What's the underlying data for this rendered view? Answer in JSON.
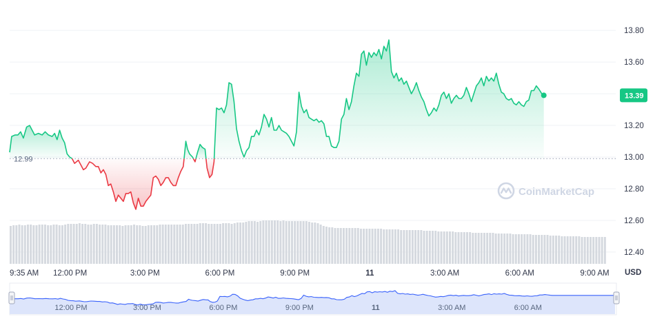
{
  "chart_data": {
    "type": "line",
    "y_ticks": [
      "13.80",
      "13.60",
      "13.40",
      "13.20",
      "13.00",
      "12.80",
      "12.60",
      "12.40"
    ],
    "y_tick_values": [
      13.8,
      13.6,
      13.4,
      13.2,
      13.0,
      12.8,
      12.6,
      12.4
    ],
    "ylim": [
      12.33,
      13.94
    ],
    "x_ticks": [
      {
        "label": "9:35 AM",
        "bold": false
      },
      {
        "label": "12:00 PM",
        "bold": false
      },
      {
        "label": "3:00 PM",
        "bold": false
      },
      {
        "label": "6:00 PM",
        "bold": false
      },
      {
        "label": "9:00 PM",
        "bold": false
      },
      {
        "label": "11",
        "bold": true
      },
      {
        "label": "3:00 AM",
        "bold": false
      },
      {
        "label": "6:00 AM",
        "bold": false
      },
      {
        "label": "9:00 AM",
        "bold": false
      }
    ],
    "x_tick_hours": [
      0,
      2.4167,
      5.4167,
      8.4167,
      11.4167,
      14.4167,
      17.4167,
      20.4167,
      23.4167
    ],
    "x_range_hours": [
      0,
      23.9
    ],
    "y_unit": "USD",
    "reference_value": 12.99,
    "reference_label": "12.99",
    "current_value": 13.39,
    "current_label": "13.39",
    "colors": {
      "above": "#16c784",
      "below": "#ea3943",
      "volume": "#d5d9df",
      "navigator_line": "#3861fb",
      "navigator_fill": "#dde5fb",
      "grid": "#eff2f5"
    },
    "series": [
      {
        "values": [
          [
            0.0,
            13.03
          ],
          [
            0.08,
            13.13
          ],
          [
            0.22,
            13.14
          ],
          [
            0.33,
            13.14
          ],
          [
            0.44,
            13.16
          ],
          [
            0.55,
            13.12
          ],
          [
            0.68,
            13.19
          ],
          [
            0.8,
            13.2
          ],
          [
            0.9,
            13.17
          ],
          [
            1.0,
            13.14
          ],
          [
            1.15,
            13.15
          ],
          [
            1.3,
            13.14
          ],
          [
            1.42,
            13.16
          ],
          [
            1.55,
            13.14
          ],
          [
            1.7,
            13.13
          ],
          [
            1.8,
            13.15
          ],
          [
            1.9,
            13.11
          ],
          [
            2.0,
            13.17
          ],
          [
            2.1,
            13.12
          ],
          [
            2.2,
            13.09
          ],
          [
            2.3,
            13.02
          ],
          [
            2.4,
            13.0
          ],
          [
            2.5,
            12.99
          ],
          [
            2.6,
            12.96
          ],
          [
            2.75,
            12.98
          ],
          [
            2.85,
            12.95
          ],
          [
            2.95,
            12.92
          ],
          [
            3.05,
            12.93
          ],
          [
            3.2,
            12.97
          ],
          [
            3.32,
            12.96
          ],
          [
            3.45,
            12.94
          ],
          [
            3.55,
            12.94
          ],
          [
            3.65,
            12.9
          ],
          [
            3.75,
            12.92
          ],
          [
            3.85,
            12.89
          ],
          [
            3.95,
            12.82
          ],
          [
            4.05,
            12.83
          ],
          [
            4.15,
            12.78
          ],
          [
            4.25,
            12.72
          ],
          [
            4.35,
            12.76
          ],
          [
            4.45,
            12.74
          ],
          [
            4.55,
            12.72
          ],
          [
            4.65,
            12.77
          ],
          [
            4.75,
            12.77
          ],
          [
            4.85,
            12.78
          ],
          [
            4.95,
            12.71
          ],
          [
            5.05,
            12.67
          ],
          [
            5.15,
            12.74
          ],
          [
            5.25,
            12.69
          ],
          [
            5.35,
            12.69
          ],
          [
            5.45,
            12.72
          ],
          [
            5.55,
            12.74
          ],
          [
            5.65,
            12.76
          ],
          [
            5.75,
            12.87
          ],
          [
            5.85,
            12.88
          ],
          [
            5.95,
            12.86
          ],
          [
            6.05,
            12.82
          ],
          [
            6.15,
            12.84
          ],
          [
            6.25,
            12.87
          ],
          [
            6.35,
            12.87
          ],
          [
            6.45,
            12.84
          ],
          [
            6.55,
            12.82
          ],
          [
            6.65,
            12.82
          ],
          [
            6.75,
            12.87
          ],
          [
            6.85,
            12.91
          ],
          [
            6.95,
            12.94
          ],
          [
            7.05,
            13.1
          ],
          [
            7.12,
            13.05
          ],
          [
            7.2,
            13.02
          ],
          [
            7.32,
            13.0
          ],
          [
            7.42,
            12.97
          ],
          [
            7.52,
            13.03
          ],
          [
            7.62,
            13.08
          ],
          [
            7.72,
            13.06
          ],
          [
            7.82,
            13.05
          ],
          [
            7.9,
            12.93
          ],
          [
            8.0,
            12.87
          ],
          [
            8.1,
            12.89
          ],
          [
            8.18,
            12.97
          ],
          [
            8.28,
            13.31
          ],
          [
            8.38,
            13.3
          ],
          [
            8.48,
            13.31
          ],
          [
            8.58,
            13.28
          ],
          [
            8.68,
            13.33
          ],
          [
            8.78,
            13.47
          ],
          [
            8.88,
            13.46
          ],
          [
            8.98,
            13.35
          ],
          [
            9.08,
            13.18
          ],
          [
            9.18,
            13.1
          ],
          [
            9.28,
            13.04
          ],
          [
            9.38,
            13.0
          ],
          [
            9.48,
            13.04
          ],
          [
            9.58,
            13.06
          ],
          [
            9.68,
            13.13
          ],
          [
            9.78,
            13.13
          ],
          [
            9.88,
            13.17
          ],
          [
            9.98,
            13.14
          ],
          [
            10.08,
            13.19
          ],
          [
            10.18,
            13.27
          ],
          [
            10.28,
            13.24
          ],
          [
            10.38,
            13.19
          ],
          [
            10.48,
            13.25
          ],
          [
            10.58,
            13.17
          ],
          [
            10.68,
            13.17
          ],
          [
            10.78,
            13.2
          ],
          [
            10.88,
            13.17
          ],
          [
            10.98,
            13.16
          ],
          [
            11.08,
            13.15
          ],
          [
            11.18,
            13.13
          ],
          [
            11.28,
            13.1
          ],
          [
            11.38,
            13.07
          ],
          [
            11.48,
            13.16
          ],
          [
            11.58,
            13.41
          ],
          [
            11.68,
            13.32
          ],
          [
            11.78,
            13.28
          ],
          [
            11.88,
            13.3
          ],
          [
            11.98,
            13.25
          ],
          [
            12.08,
            13.24
          ],
          [
            12.18,
            13.23
          ],
          [
            12.28,
            13.24
          ],
          [
            12.38,
            13.22
          ],
          [
            12.48,
            13.23
          ],
          [
            12.58,
            13.21
          ],
          [
            12.68,
            13.13
          ],
          [
            12.78,
            13.13
          ],
          [
            12.88,
            13.07
          ],
          [
            12.98,
            13.06
          ],
          [
            13.08,
            13.06
          ],
          [
            13.18,
            13.1
          ],
          [
            13.28,
            13.24
          ],
          [
            13.38,
            13.27
          ],
          [
            13.48,
            13.37
          ],
          [
            13.58,
            13.3
          ],
          [
            13.68,
            13.35
          ],
          [
            13.78,
            13.45
          ],
          [
            13.88,
            13.53
          ],
          [
            13.98,
            13.51
          ],
          [
            14.08,
            13.65
          ],
          [
            14.18,
            13.67
          ],
          [
            14.28,
            13.58
          ],
          [
            14.38,
            13.66
          ],
          [
            14.48,
            13.63
          ],
          [
            14.58,
            13.66
          ],
          [
            14.68,
            13.64
          ],
          [
            14.78,
            13.68
          ],
          [
            14.88,
            13.62
          ],
          [
            14.98,
            13.7
          ],
          [
            15.08,
            13.67
          ],
          [
            15.18,
            13.74
          ],
          [
            15.28,
            13.54
          ],
          [
            15.38,
            13.5
          ],
          [
            15.48,
            13.53
          ],
          [
            15.58,
            13.48
          ],
          [
            15.68,
            13.5
          ],
          [
            15.78,
            13.46
          ],
          [
            15.88,
            13.48
          ],
          [
            15.98,
            13.44
          ],
          [
            16.08,
            13.4
          ],
          [
            16.18,
            13.43
          ],
          [
            16.28,
            13.47
          ],
          [
            16.38,
            13.42
          ],
          [
            16.48,
            13.38
          ],
          [
            16.58,
            13.35
          ],
          [
            16.68,
            13.3
          ],
          [
            16.78,
            13.26
          ],
          [
            16.88,
            13.28
          ],
          [
            16.98,
            13.31
          ],
          [
            17.08,
            13.29
          ],
          [
            17.18,
            13.33
          ],
          [
            17.28,
            13.39
          ],
          [
            17.38,
            13.41
          ],
          [
            17.48,
            13.37
          ],
          [
            17.58,
            13.4
          ],
          [
            17.68,
            13.34
          ],
          [
            17.78,
            13.37
          ],
          [
            17.88,
            13.39
          ],
          [
            17.98,
            13.37
          ],
          [
            18.08,
            13.37
          ],
          [
            18.18,
            13.39
          ],
          [
            18.28,
            13.44
          ],
          [
            18.38,
            13.4
          ],
          [
            18.48,
            13.35
          ],
          [
            18.58,
            13.4
          ],
          [
            18.68,
            13.45
          ],
          [
            18.78,
            13.47
          ],
          [
            18.88,
            13.5
          ],
          [
            18.98,
            13.45
          ],
          [
            19.08,
            13.51
          ],
          [
            19.18,
            13.48
          ],
          [
            19.28,
            13.5
          ],
          [
            19.38,
            13.48
          ],
          [
            19.48,
            13.53
          ],
          [
            19.58,
            13.46
          ],
          [
            19.68,
            13.41
          ],
          [
            19.78,
            13.4
          ],
          [
            19.88,
            13.37
          ],
          [
            19.98,
            13.36
          ],
          [
            20.08,
            13.37
          ],
          [
            20.18,
            13.34
          ],
          [
            20.28,
            13.33
          ],
          [
            20.38,
            13.35
          ],
          [
            20.48,
            13.33
          ],
          [
            20.58,
            13.32
          ],
          [
            20.68,
            13.35
          ],
          [
            20.78,
            13.36
          ],
          [
            20.88,
            13.42
          ],
          [
            20.98,
            13.42
          ],
          [
            21.08,
            13.45
          ],
          [
            21.18,
            13.43
          ],
          [
            21.3,
            13.4
          ],
          [
            21.38,
            13.39
          ]
        ]
      }
    ],
    "volume": [
      0.55,
      0.56,
      0.56,
      0.57,
      0.56,
      0.56,
      0.57,
      0.57,
      0.56,
      0.56,
      0.57,
      0.57,
      0.57,
      0.56,
      0.56,
      0.57,
      0.57,
      0.56,
      0.56,
      0.57,
      0.58,
      0.58,
      0.58,
      0.58,
      0.59,
      0.58,
      0.58,
      0.57,
      0.57,
      0.58,
      0.58,
      0.57,
      0.57,
      0.57,
      0.56,
      0.56,
      0.56,
      0.56,
      0.56,
      0.55,
      0.56,
      0.56,
      0.56,
      0.57,
      0.56,
      0.56,
      0.55,
      0.55,
      0.56,
      0.56,
      0.56,
      0.56,
      0.57,
      0.57,
      0.57,
      0.57,
      0.57,
      0.57,
      0.57,
      0.57,
      0.57,
      0.58,
      0.58,
      0.58,
      0.58,
      0.58,
      0.59,
      0.59,
      0.59,
      0.58,
      0.58,
      0.58,
      0.58,
      0.58,
      0.59,
      0.59,
      0.59,
      0.58,
      0.59,
      0.6,
      0.6,
      0.6,
      0.61,
      0.62,
      0.62,
      0.62,
      0.61,
      0.62,
      0.63,
      0.63,
      0.63,
      0.63,
      0.63,
      0.63,
      0.62,
      0.63,
      0.62,
      0.62,
      0.62,
      0.62,
      0.62,
      0.62,
      0.62,
      0.62,
      0.61,
      0.6,
      0.6,
      0.59,
      0.57,
      0.55,
      0.54,
      0.53,
      0.53,
      0.52,
      0.52,
      0.52,
      0.52,
      0.52,
      0.52,
      0.52,
      0.52,
      0.52,
      0.51,
      0.51,
      0.51,
      0.51,
      0.51,
      0.51,
      0.51,
      0.51,
      0.5,
      0.5,
      0.5,
      0.5,
      0.5,
      0.5,
      0.49,
      0.49,
      0.49,
      0.49,
      0.49,
      0.49,
      0.49,
      0.49,
      0.48,
      0.48,
      0.48,
      0.48,
      0.48,
      0.47,
      0.47,
      0.47,
      0.47,
      0.47,
      0.47,
      0.46,
      0.46,
      0.46,
      0.46,
      0.46,
      0.46,
      0.45,
      0.45,
      0.45,
      0.45,
      0.45,
      0.45,
      0.45,
      0.45,
      0.44,
      0.44,
      0.44,
      0.44,
      0.44,
      0.44,
      0.43,
      0.43,
      0.43,
      0.43,
      0.43,
      0.43,
      0.43,
      0.42,
      0.42,
      0.42,
      0.42,
      0.42,
      0.42,
      0.41,
      0.41,
      0.41,
      0.41,
      0.4,
      0.4,
      0.4,
      0.4,
      0.4,
      0.4,
      0.4,
      0.39,
      0.39,
      0.39,
      0.39,
      0.39,
      0.39,
      0.39,
      0.39,
      0.39
    ],
    "navigator": {
      "x_ticks": [
        {
          "label": "12:00 PM",
          "bold": false
        },
        {
          "label": "3:00 PM",
          "bold": false
        },
        {
          "label": "6:00 PM",
          "bold": false
        },
        {
          "label": "9:00 PM",
          "bold": false
        },
        {
          "label": "11",
          "bold": true
        },
        {
          "label": "3:00 AM",
          "bold": false
        },
        {
          "label": "6:00 AM",
          "bold": false
        }
      ],
      "x_tick_hours": [
        2.4167,
        5.4167,
        8.4167,
        11.4167,
        14.4167,
        17.4167,
        20.4167
      ]
    }
  },
  "watermark": {
    "text": "CoinMarketCap",
    "icon": "coinmarketcap-logo-icon"
  }
}
